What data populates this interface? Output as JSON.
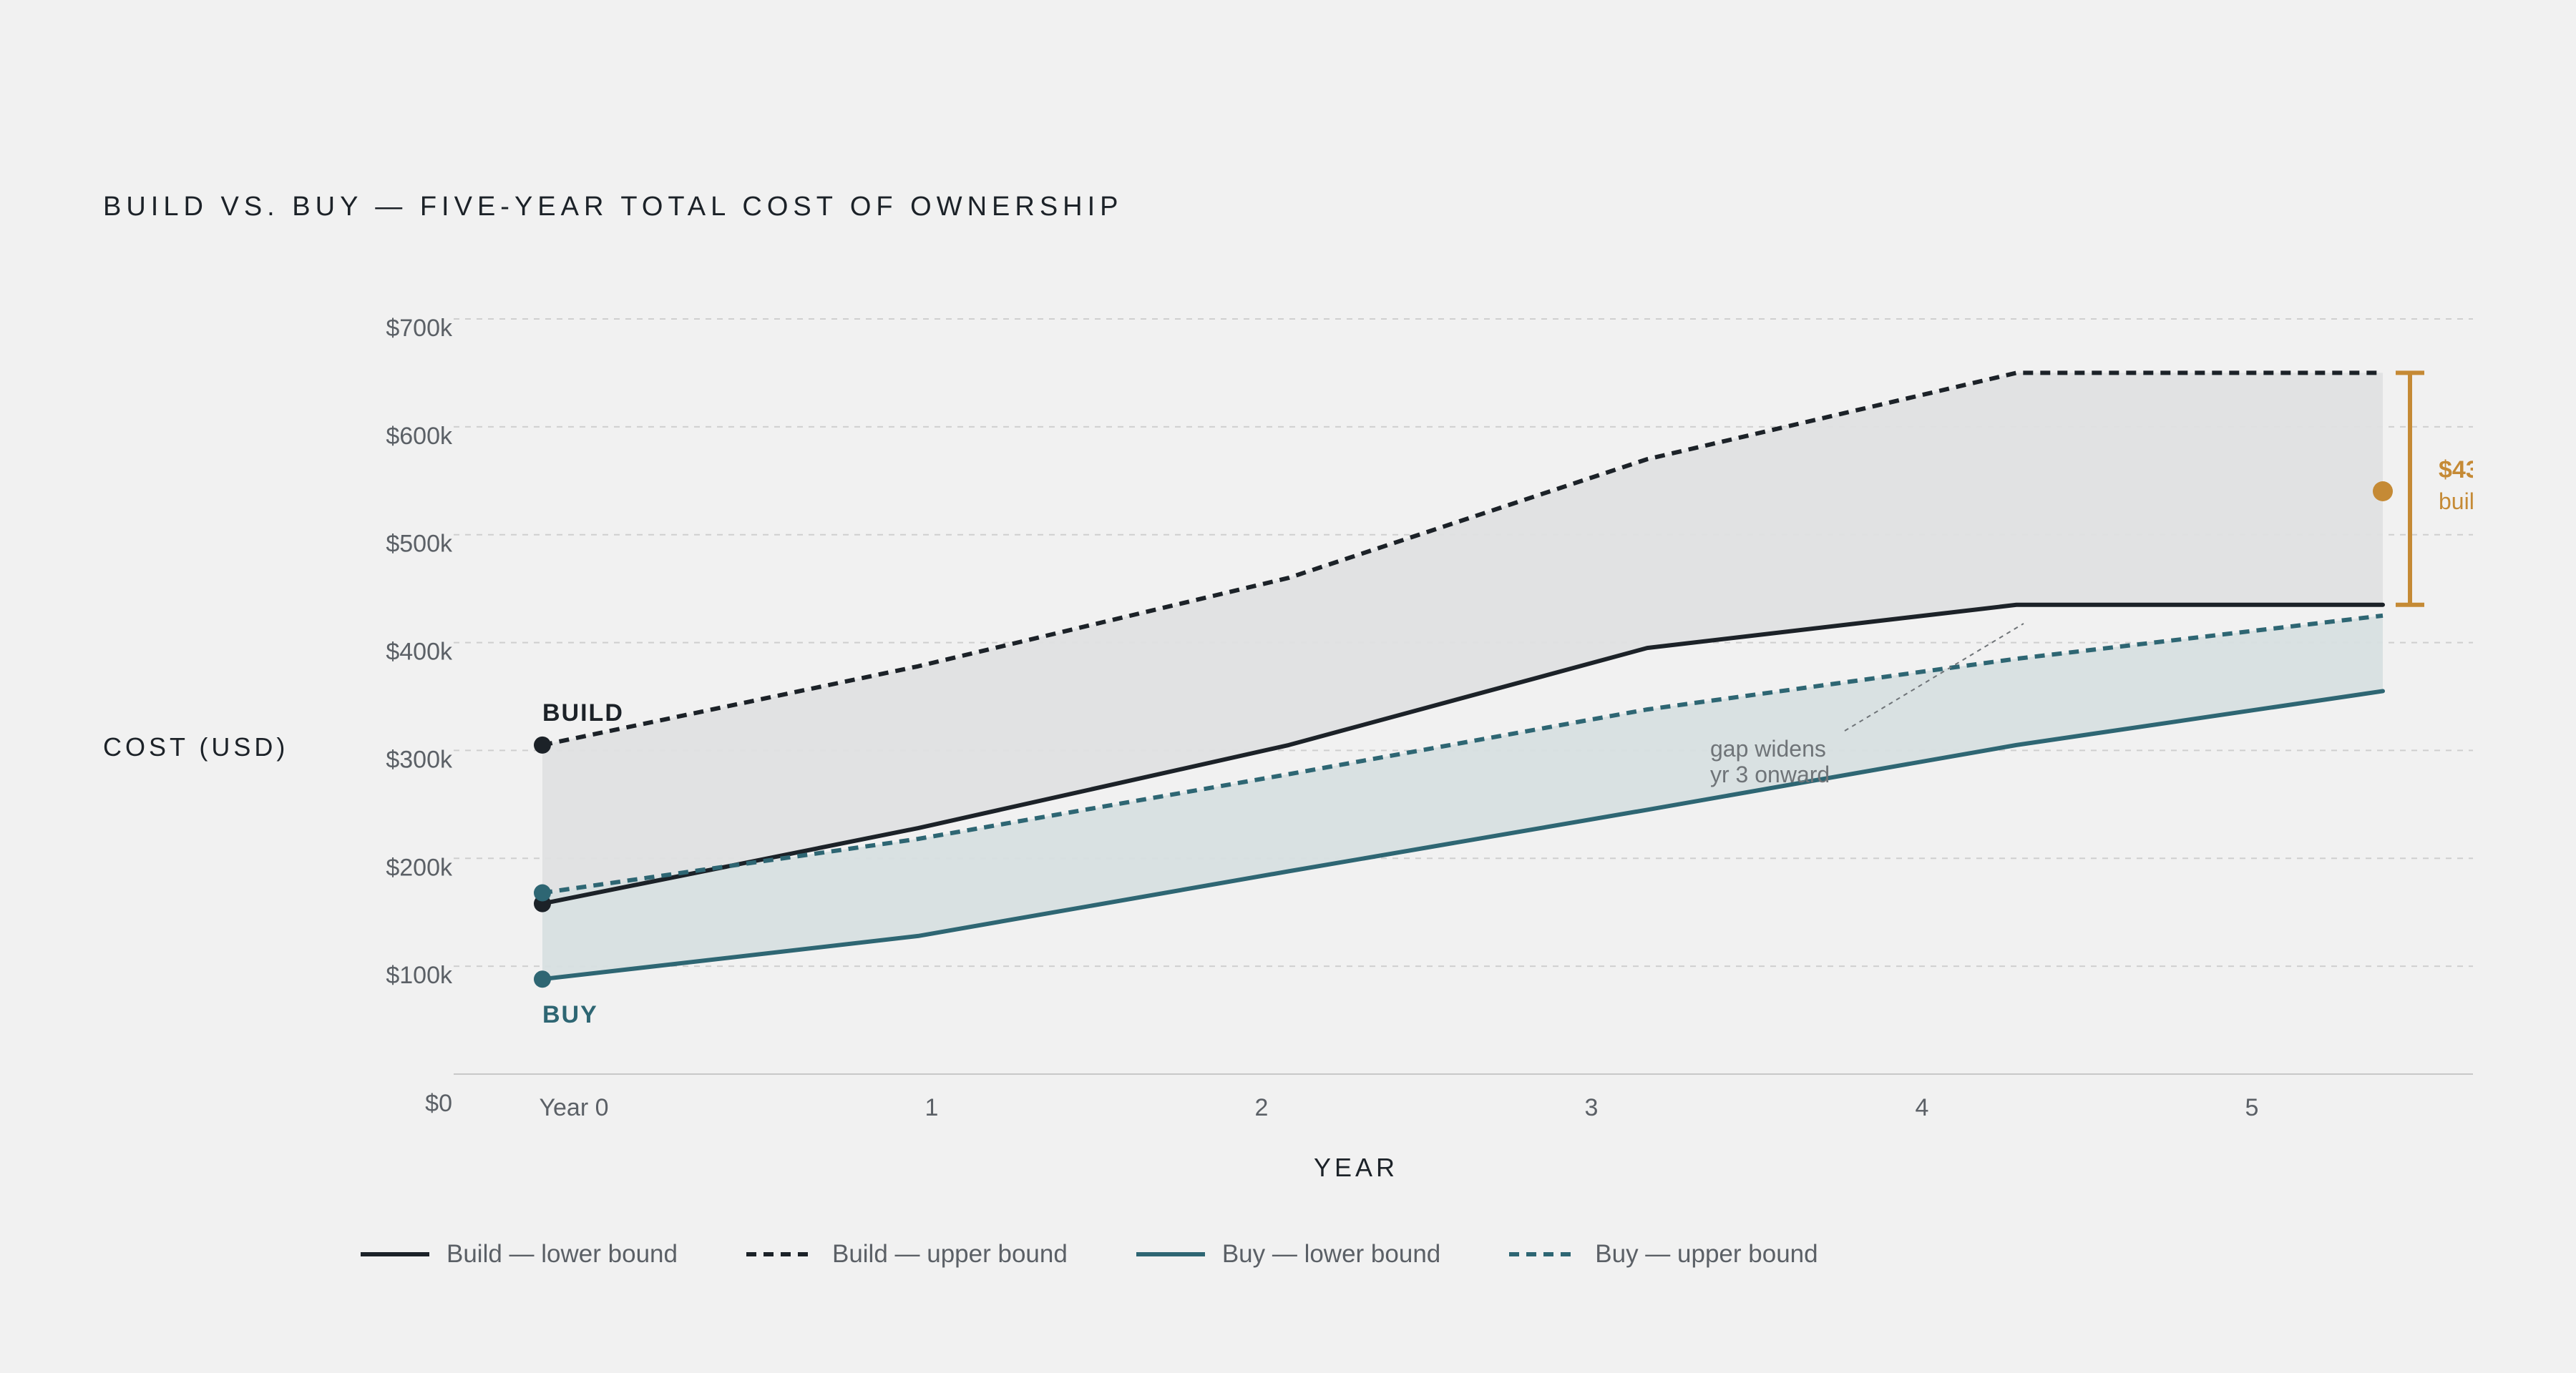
{
  "chart_data": {
    "type": "line",
    "title": "BUILD VS. BUY — FIVE-YEAR TOTAL COST OF OWNERSHIP",
    "xlabel": "YEAR",
    "ylabel": "COST (USD)",
    "x_ticks": [
      "Year 0",
      "1",
      "2",
      "3",
      "4",
      "5"
    ],
    "y_ticks": [
      "$0",
      "$100k",
      "$200k",
      "$300k",
      "$400k",
      "$500k",
      "$600k",
      "$700k"
    ],
    "ylim": [
      0,
      700
    ],
    "y_unit": "thousand USD",
    "grid": true,
    "legend_position": "bottom",
    "series": [
      {
        "name": "Build — lower bound",
        "group": "build",
        "style": "solid",
        "color": "#1c2228",
        "x": [
          0,
          1,
          2,
          3,
          4,
          5
        ],
        "values": [
          158,
          228,
          305,
          395,
          435,
          435
        ]
      },
      {
        "name": "Build — upper bound",
        "group": "build",
        "style": "dashed",
        "color": "#1c2228",
        "x": [
          0,
          1,
          2,
          3,
          4,
          5
        ],
        "values": [
          305,
          378,
          460,
          570,
          650,
          650
        ]
      },
      {
        "name": "Buy — lower bound",
        "group": "buy",
        "style": "solid",
        "color": "#2e6673",
        "x": [
          0,
          1,
          2,
          3,
          4,
          5
        ],
        "values": [
          88,
          128,
          188,
          245,
          305,
          355
        ]
      },
      {
        "name": "Buy — upper bound",
        "group": "buy",
        "style": "dashed",
        "color": "#2e6673",
        "x": [
          0,
          1,
          2,
          3,
          4,
          5
        ],
        "values": [
          168,
          218,
          278,
          338,
          385,
          425
        ]
      }
    ],
    "bands": [
      {
        "between": [
          "Build — lower bound",
          "Build — upper bound"
        ],
        "fill": "#dfe0e1"
      },
      {
        "between": [
          "Buy — lower bound",
          "Buy — upper bound"
        ],
        "fill": "#d7dfe0"
      }
    ],
    "series_labels": [
      {
        "text": "BUILD",
        "color": "#1c2228"
      },
      {
        "text": "BUY",
        "color": "#2e6673"
      }
    ],
    "annotations": [
      {
        "id": "gap",
        "lines": [
          "gap widens",
          "yr 3 onward"
        ]
      },
      {
        "id": "delta",
        "text_line1": "$43",
        "text_line2": "buil",
        "x": 5,
        "range": [
          435,
          650
        ],
        "point": 540,
        "color": "#c58a35"
      }
    ],
    "colors": {
      "build": "#1c2228",
      "buy": "#2e6673",
      "accent": "#c58a35",
      "grid": "#cfcfcf",
      "tick_text": "#5b6066"
    }
  }
}
